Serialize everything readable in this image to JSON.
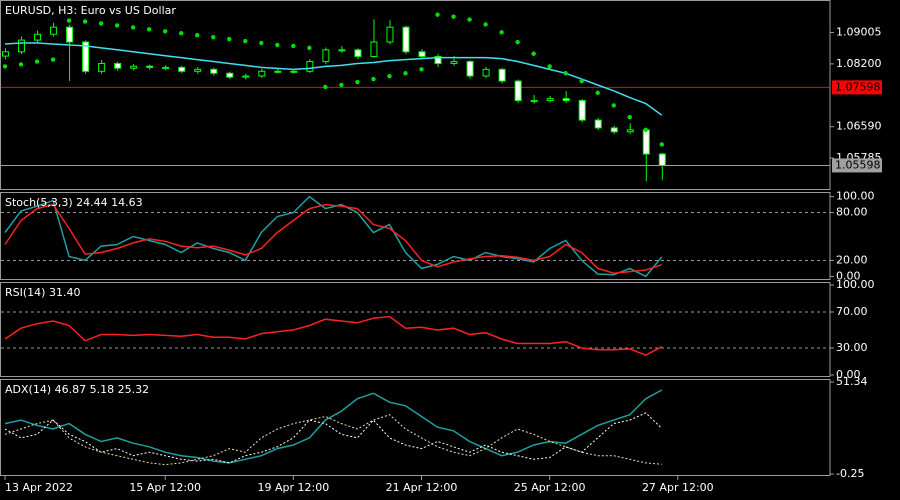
{
  "chart_data": [
    {
      "type": "candlestick",
      "title": "EURUSD, H3:  Euro vs US Dollar",
      "x": [
        0,
        1,
        2,
        3,
        4,
        5,
        6,
        7,
        8,
        9,
        10,
        11,
        12,
        13,
        14,
        15,
        16,
        17,
        18,
        19,
        20,
        21,
        22,
        23,
        24,
        25,
        26,
        27,
        28,
        29,
        30,
        31,
        32,
        33,
        34,
        35,
        36,
        37,
        38,
        39,
        40,
        41
      ],
      "xlim": [
        0,
        51.5
      ],
      "ylim": [
        1.0502,
        1.0976
      ],
      "yticks": [
        1.09005,
        {
          "value": 1.082,
          "label": "1.08200"
        },
        {
          "value": 1.0659,
          "label": "1.06590"
        },
        1.05785
      ],
      "up_color": "#00ff00",
      "down_color": "#00ff00",
      "open": [
        1.084,
        1.0851,
        1.0881,
        1.0896,
        1.0914,
        1.0876,
        1.0801,
        1.0821,
        1.0809,
        1.0814,
        1.0811,
        1.0811,
        1.0801,
        1.0806,
        1.0796,
        1.0786,
        1.0789,
        1.0801,
        1.0801,
        1.0801,
        1.0826,
        1.0856,
        1.0856,
        1.0839,
        1.0876,
        1.0914,
        1.0851,
        1.0839,
        1.0821,
        1.0826,
        1.0789,
        1.0806,
        1.0776,
        1.0726,
        1.0726,
        1.0731,
        1.0726,
        1.0676,
        1.0656,
        1.0646,
        1.0651,
        1.0589
      ],
      "high": [
        1.086,
        1.089,
        1.0905,
        1.0925,
        1.092,
        1.088,
        1.083,
        1.0826,
        1.082,
        1.0818,
        1.0817,
        1.0815,
        1.0812,
        1.081,
        1.08,
        1.0795,
        1.0808,
        1.0807,
        1.0806,
        1.0832,
        1.0862,
        1.0866,
        1.086,
        1.0934,
        1.0932,
        1.0918,
        1.0858,
        1.0845,
        1.084,
        1.083,
        1.0812,
        1.081,
        1.078,
        1.074,
        1.0738,
        1.075,
        1.073,
        1.0682,
        1.0662,
        1.0668,
        1.0655,
        1.0592
      ],
      "low": [
        1.0832,
        1.0845,
        1.0875,
        1.089,
        1.0776,
        1.0795,
        1.0795,
        1.0802,
        1.0803,
        1.0805,
        1.0804,
        1.0796,
        1.0795,
        1.079,
        1.0781,
        1.078,
        1.0784,
        1.0796,
        1.0795,
        1.0797,
        1.082,
        1.0848,
        1.0832,
        1.0835,
        1.087,
        1.0845,
        1.0832,
        1.0812,
        1.0815,
        1.0782,
        1.0784,
        1.077,
        1.072,
        1.0718,
        1.0722,
        1.072,
        1.067,
        1.065,
        1.064,
        1.064,
        1.052,
        1.0522
      ],
      "close": [
        1.0851,
        1.0881,
        1.0896,
        1.0914,
        1.0876,
        1.0801,
        1.0821,
        1.0809,
        1.0814,
        1.0811,
        1.0811,
        1.0801,
        1.0806,
        1.0796,
        1.0786,
        1.0789,
        1.0801,
        1.0801,
        1.0801,
        1.0826,
        1.0856,
        1.0856,
        1.0839,
        1.0876,
        1.0914,
        1.0851,
        1.0839,
        1.0821,
        1.0826,
        1.0789,
        1.0806,
        1.0776,
        1.0726,
        1.0726,
        1.0731,
        1.0726,
        1.0676,
        1.0656,
        1.0646,
        1.0651,
        1.0589,
        1.05598
      ],
      "series": [
        {
          "style": "line",
          "color": "#40e0f0",
          "values": [
            1.0871,
            1.08735,
            1.08735,
            1.0871,
            1.08685,
            1.0866,
            1.0861,
            1.0856,
            1.0851,
            1.0846,
            1.0841,
            1.0836,
            1.0831,
            1.0826,
            1.0821,
            1.0816,
            1.0811,
            1.08085,
            1.0806,
            1.08085,
            1.08135,
            1.0816,
            1.0821,
            1.08235,
            1.08285,
            1.0831,
            1.08335,
            1.0836,
            1.0836,
            1.0836,
            1.0836,
            1.08335,
            1.0826,
            1.0816,
            1.0806,
            1.0796,
            1.0781,
            1.0766,
            1.0751,
            1.07335,
            1.07185,
            1.06885
          ]
        },
        {
          "style": "dots",
          "color": "#00e000",
          "values": [
            1.08135,
            1.08185,
            1.0826,
            1.0831,
            1.0931,
            1.09285,
            1.09235,
            1.09185,
            1.09135,
            1.09085,
            1.09035,
            1.08985,
            1.08935,
            1.08885,
            1.08835,
            1.08785,
            1.08735,
            1.08685,
            1.0866,
            1.0861,
            1.0761,
            1.0766,
            1.07735,
            1.0781,
            1.07885,
            1.0796,
            1.0806,
            1.0946,
            1.0941,
            1.09335,
            1.0921,
            1.0901,
            1.0876,
            1.0846,
            1.08135,
            1.0796,
            1.0776,
            1.0746,
            1.07135,
            1.06835,
            1.0651,
            1.06135
          ]
        }
      ],
      "price_lines": [
        {
          "value": 1.07598,
          "color": "#ff0000"
        },
        {
          "value": 1.05598,
          "color": "#a0a0a0"
        }
      ]
    },
    {
      "type": "oscillator",
      "title": "Stoch(5,3,3) 24.44 14.63",
      "xlim": [
        0,
        51.5
      ],
      "ylim": [
        -2,
        102
      ],
      "yticks": [
        {
          "value": 100,
          "label": "100.00"
        },
        {
          "value": 80,
          "label": "80.00"
        },
        {
          "value": 20,
          "label": "20.00"
        },
        {
          "value": 0,
          "label": "0.00"
        }
      ],
      "levels": [
        80,
        20
      ],
      "series": [
        {
          "style": "line",
          "color": "#20a0a0",
          "values": [
            55,
            82,
            88,
            95,
            25,
            20,
            38,
            40,
            50,
            45,
            40,
            30,
            42,
            35,
            30,
            20,
            55,
            75,
            80,
            100,
            85,
            90,
            80,
            55,
            65,
            30,
            10,
            15,
            25,
            20,
            30,
            25,
            22,
            18,
            35,
            45,
            20,
            3,
            2,
            10,
            0,
            24.44
          ]
        },
        {
          "style": "line",
          "color": "#ff2020",
          "values": [
            40,
            70,
            85,
            90,
            60,
            28,
            30,
            35,
            42,
            47,
            44,
            38,
            36,
            38,
            33,
            27,
            35,
            55,
            70,
            85,
            90,
            88,
            85,
            65,
            60,
            45,
            20,
            12,
            18,
            22,
            25,
            26,
            24,
            20,
            25,
            40,
            30,
            10,
            4,
            6,
            8,
            14.63
          ]
        }
      ]
    },
    {
      "type": "oscillator",
      "title": "RSI(14) 31.40",
      "xlim": [
        0,
        51.5
      ],
      "ylim": [
        0,
        100
      ],
      "yticks": [
        {
          "value": 100,
          "label": "100.00"
        },
        {
          "value": 70,
          "label": "70.00"
        },
        {
          "value": 30,
          "label": "30.00"
        },
        {
          "value": 0,
          "label": "0.00"
        }
      ],
      "levels": [
        70,
        30
      ],
      "series": [
        {
          "style": "line",
          "color": "#ff2020",
          "values": [
            40,
            52,
            57,
            60,
            55,
            38,
            45,
            45,
            44,
            45,
            44,
            43,
            45,
            42,
            42,
            40,
            46,
            48,
            50,
            55,
            62,
            60,
            58,
            63,
            65,
            52,
            53,
            50,
            52,
            45,
            47,
            40,
            35,
            35,
            35,
            37,
            30,
            28,
            28,
            29,
            22,
            31.4
          ]
        }
      ]
    },
    {
      "type": "oscillator",
      "title": "ADX(14) 46.87 5.18 25.32",
      "xlim": [
        0,
        51.5
      ],
      "ylim": [
        -0.25,
        51.34
      ],
      "yticks": [
        51.34,
        -0.25
      ],
      "xticks": [
        {
          "value": 0,
          "label": "13 Apr 2022"
        },
        {
          "value": 10,
          "label": "15 Apr 12:00"
        },
        {
          "value": 18,
          "label": "19 Apr 12:00"
        },
        {
          "value": 26,
          "label": "21 Apr 12:00"
        },
        {
          "value": 34,
          "label": "25 Apr 12:00"
        },
        {
          "value": 42,
          "label": "27 Apr 12:00"
        }
      ],
      "series": [
        {
          "style": "line",
          "color": "#20a0a0",
          "values": [
            28,
            30,
            27,
            25,
            28,
            22,
            18,
            20,
            17,
            15,
            12,
            10,
            9,
            7,
            6,
            8,
            10,
            14,
            16,
            20,
            30,
            35,
            42,
            45,
            40,
            38,
            32,
            26,
            24,
            18,
            14,
            10,
            12,
            16,
            18,
            17,
            22,
            27,
            30,
            33,
            42,
            46.87
          ]
        },
        {
          "style": "dotted",
          "color": "#e8e8a0",
          "values": [
            22,
            25,
            28,
            30,
            20,
            15,
            12,
            10,
            8,
            6,
            5,
            6,
            8,
            10,
            14,
            12,
            20,
            25,
            28,
            30,
            32,
            28,
            25,
            30,
            33,
            25,
            20,
            15,
            12,
            10,
            14,
            20,
            25,
            22,
            18,
            15,
            12,
            10,
            10,
            8,
            6,
            5.18
          ]
        },
        {
          "style": "dotted",
          "color": "#ffffff",
          "values": [
            25,
            20,
            22,
            30,
            22,
            18,
            12,
            14,
            10,
            12,
            10,
            8,
            7,
            8,
            6,
            10,
            12,
            15,
            20,
            30,
            28,
            22,
            20,
            30,
            20,
            16,
            14,
            18,
            15,
            12,
            16,
            12,
            10,
            8,
            9,
            15,
            12,
            20,
            28,
            30,
            34,
            25.32
          ]
        }
      ]
    }
  ]
}
